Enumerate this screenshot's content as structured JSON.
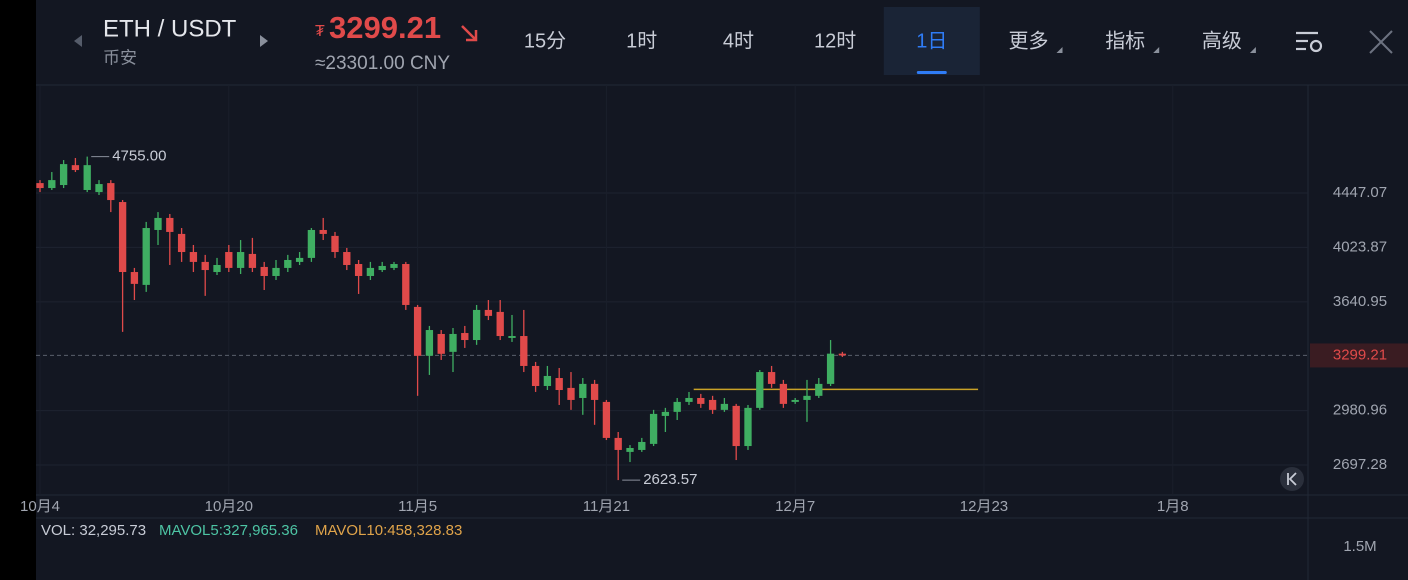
{
  "header": {
    "pair": "ETH / USDT",
    "exchange": "币安",
    "currency_symbol": "₮",
    "price": "3299.21",
    "cny": "≈23301.00 CNY",
    "tabs": [
      "15分",
      "1时",
      "4时",
      "12时",
      "1日",
      "更多",
      "指标",
      "高级"
    ],
    "active_tab": 4
  },
  "chart_data": {
    "type": "candlestick",
    "up_color": "#3fae62",
    "down_color": "#e04a4a",
    "log_scale": true,
    "x": [
      0,
      1,
      2,
      3,
      4,
      5,
      6,
      7,
      8,
      9,
      10,
      11,
      12,
      13,
      14,
      15,
      16,
      17,
      18,
      19,
      20,
      21,
      22,
      23,
      24,
      25,
      26,
      27,
      28,
      29,
      30,
      31,
      32,
      33,
      34,
      35,
      36,
      37,
      38,
      39,
      40,
      41,
      42,
      43,
      44,
      45,
      46,
      47,
      48,
      49,
      50,
      51,
      52,
      53,
      54,
      55,
      56,
      57,
      58,
      59,
      60,
      61,
      62,
      63,
      64,
      65,
      66,
      67,
      68
    ],
    "open": [
      4529,
      4488,
      4513,
      4681,
      4472,
      4455,
      4529,
      4374,
      3846,
      3756,
      4155,
      4248,
      4125,
      3990,
      3918,
      3846,
      3990,
      3875,
      3976,
      3882,
      3818,
      3875,
      3918,
      3947,
      4155,
      4110,
      3990,
      3903,
      3818,
      3860,
      3875,
      3903,
      3607,
      3297,
      3432,
      3321,
      3438,
      3394,
      3587,
      3574,
      3407,
      3419,
      3236,
      3119,
      3165,
      3108,
      3051,
      3131,
      3029,
      2835,
      2763,
      2773,
      2804,
      2952,
      2974,
      3029,
      3051,
      3040,
      2985,
      3007,
      2793,
      2996,
      3200,
      3131,
      3029,
      3040,
      3063,
      3131,
      3310
    ],
    "high": [
      4554,
      4622,
      4725,
      4743,
      4755,
      4554,
      4554,
      4390,
      3875,
      4217,
      4294,
      4279,
      4170,
      4042,
      3969,
      3947,
      4042,
      4079,
      4095,
      3918,
      3932,
      3969,
      3990,
      4170,
      4248,
      4140,
      4020,
      3932,
      3918,
      3918,
      3918,
      3918,
      3620,
      3483,
      3457,
      3470,
      3483,
      3620,
      3653,
      3653,
      3554,
      3587,
      3260,
      3236,
      3224,
      3200,
      3165,
      3154,
      3040,
      2866,
      2798,
      2835,
      2985,
      2996,
      3051,
      3085,
      3074,
      3063,
      3051,
      3018,
      3012,
      3212,
      3236,
      3154,
      3051,
      3154,
      3165,
      3394,
      3321
    ],
    "low": [
      4455,
      4472,
      4488,
      4622,
      4455,
      4431,
      4294,
      3445,
      3653,
      3708,
      4042,
      3896,
      3918,
      3846,
      3681,
      3825,
      3846,
      3832,
      3846,
      3721,
      3790,
      3846,
      3896,
      3918,
      4079,
      3947,
      3860,
      3694,
      3790,
      3846,
      3860,
      3587,
      3063,
      3183,
      3272,
      3200,
      3345,
      3364,
      3521,
      3394,
      3382,
      3200,
      3085,
      3096,
      3012,
      2985,
      2958,
      2904,
      2824,
      2623.57,
      2712,
      2763,
      2793,
      2866,
      2930,
      3012,
      2996,
      2963,
      2974,
      2722,
      2773,
      2985,
      3108,
      2996,
      3018,
      2920,
      3051,
      3119,
      3290
    ],
    "close": [
      4488,
      4554,
      4690,
      4639,
      4681,
      4521,
      4390,
      3846,
      3763,
      4170,
      4248,
      4140,
      3990,
      3918,
      3860,
      3896,
      3875,
      3990,
      3875,
      3818,
      3875,
      3932,
      3947,
      4155,
      4125,
      3990,
      3896,
      3818,
      3875,
      3889,
      3903,
      3620,
      3297,
      3457,
      3309,
      3432,
      3394,
      3587,
      3548,
      3419,
      3419,
      3236,
      3119,
      3177,
      3096,
      3040,
      3131,
      3040,
      2835,
      2773,
      2783,
      2814,
      2963,
      2974,
      3029,
      3051,
      3018,
      2985,
      3018,
      2793,
      2996,
      3200,
      3131,
      3018,
      3040,
      3063,
      3131,
      3310,
      3299.21
    ],
    "ylim": [
      2552.6,
      5424
    ],
    "yticks": [
      2697.28,
      2980.96,
      3640.95,
      4023.87,
      4447.07
    ],
    "xlim": [
      -0.34,
      107.46
    ],
    "xticks": [
      {
        "value": 0,
        "label": "10月4"
      },
      {
        "value": 16,
        "label": "10月20"
      },
      {
        "value": 32,
        "label": "11月5"
      },
      {
        "value": 48,
        "label": "11月21"
      },
      {
        "value": 64,
        "label": "12月7"
      },
      {
        "value": 80,
        "label": "12月23"
      },
      {
        "value": 96,
        "label": "1月8"
      }
    ],
    "annotations": [
      {
        "x": 4,
        "value": 4755,
        "label": "4755.00"
      },
      {
        "x": 49,
        "value": 2623.57,
        "label": "2623.57"
      }
    ],
    "current_price": {
      "value": 3299.21,
      "label": "3299.21"
    },
    "levels": [
      {
        "value": 3100,
        "x": [
          55.4,
          79.5
        ],
        "color": "#c9a227"
      }
    ],
    "grid": true
  },
  "volume": {
    "vol": "VOL: 32,295.73",
    "mavol5": "MAVOL5:327,965.36",
    "mavol10": "MAVOL10:458,328.83",
    "axis_label": "1.5M"
  }
}
